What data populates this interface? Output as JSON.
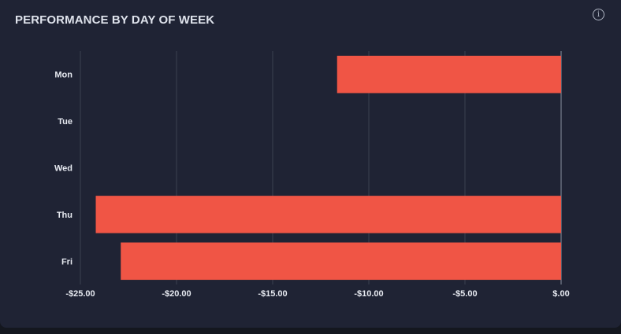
{
  "panel": {
    "title": "PERFORMANCE BY DAY OF WEEK",
    "info_icon": "info-icon"
  },
  "chart_data": {
    "type": "bar",
    "orientation": "horizontal",
    "categories": [
      "Mon",
      "Tue",
      "Wed",
      "Thu",
      "Fri"
    ],
    "values": [
      -11.65,
      0,
      0,
      -24.2,
      -22.9
    ],
    "xlim": [
      -25,
      0
    ],
    "x_ticks": [
      -25,
      -20,
      -15,
      -10,
      -5,
      0
    ],
    "x_tick_labels": [
      "-$25.00",
      "-$20.00",
      "-$15.00",
      "-$10.00",
      "-$5.00",
      "$.00"
    ],
    "grid": "vertical",
    "bar_color": "#f05545",
    "grid_color": "#3b4051",
    "label_color": "#e6e9f0"
  }
}
